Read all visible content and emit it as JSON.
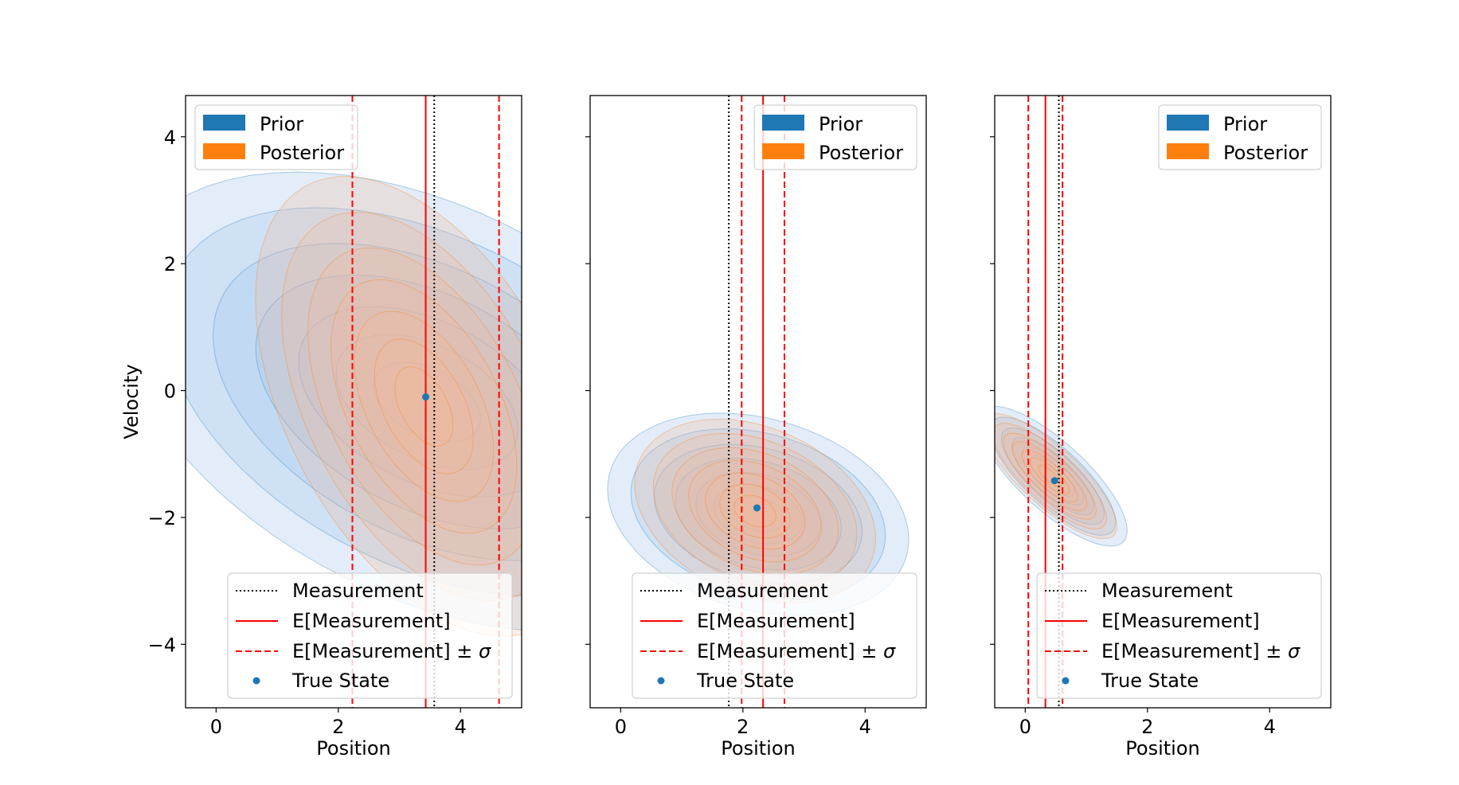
{
  "legend_text": {
    "prior": "Prior",
    "posterior": "Posterior",
    "measurement": "Measurement",
    "expected": "E[Measurement]",
    "expected_sigma_prefix": "E[Measurement] ± ",
    "sigma": "σ",
    "true_state": "True State"
  },
  "colors": {
    "prior": "#1f77b4",
    "prior_fill": "#a8c8ee",
    "posterior": "#ff7f0e",
    "posterior_fill": "#f2b99a",
    "measurement": "#000000",
    "expected": "#ff0000",
    "true_state": "#1f77b4"
  },
  "chart_data": [
    {
      "type": "contour",
      "xlabel": "Position",
      "ylabel": "Velocity",
      "xlim": [
        -0.5,
        5.0
      ],
      "ylim": [
        -5.0,
        4.65
      ],
      "xticks": [
        0,
        2,
        4
      ],
      "yticks": [
        -4,
        -2,
        0,
        2,
        4
      ],
      "grid": false,
      "legend_distributions_position": "upper-left",
      "legend_lines_position": "lower-right",
      "prior": {
        "mean": [
          3.45,
          -0.18
        ],
        "std": [
          1.75,
          1.25
        ],
        "corr": -0.42
      },
      "posterior": {
        "mean": [
          3.4,
          -0.25
        ],
        "std": [
          0.95,
          1.25
        ],
        "corr": -0.47
      },
      "measurement": 3.57,
      "expected_measurement": 3.43,
      "expected_sigma": 1.2,
      "true_state": {
        "position": 3.43,
        "velocity": -0.1
      }
    },
    {
      "type": "contour",
      "xlabel": "Position",
      "ylabel": "",
      "xlim": [
        -0.5,
        5.0
      ],
      "ylim": [
        -5.0,
        4.65
      ],
      "xticks": [
        0,
        2,
        4
      ],
      "yticks": [
        -4,
        -2,
        0,
        2,
        4
      ],
      "grid": false,
      "legend_distributions_position": "upper-right",
      "legend_lines_position": "lower-right",
      "prior": {
        "mean": [
          2.25,
          -1.95
        ],
        "std": [
          0.85,
          0.55
        ],
        "corr": -0.25
      },
      "posterior": {
        "mean": [
          2.2,
          -1.9
        ],
        "std": [
          0.68,
          0.5
        ],
        "corr": -0.3
      },
      "measurement": 1.77,
      "expected_measurement": 2.33,
      "expected_sigma": 0.35,
      "true_state": {
        "position": 2.23,
        "velocity": -1.85
      }
    },
    {
      "type": "contour",
      "xlabel": "Position",
      "ylabel": "",
      "xlim": [
        -0.5,
        5.0
      ],
      "ylim": [
        -5.0,
        4.65
      ],
      "xticks": [
        0,
        2,
        4
      ],
      "yticks": [
        -4,
        -2,
        0,
        2,
        4
      ],
      "grid": false,
      "legend_distributions_position": "upper-right",
      "legend_lines_position": "lower-right",
      "prior": {
        "mean": [
          0.45,
          -1.35
        ],
        "std": [
          0.42,
          0.38
        ],
        "corr": -0.78
      },
      "posterior": {
        "mean": [
          0.4,
          -1.35
        ],
        "std": [
          0.38,
          0.34
        ],
        "corr": -0.8
      },
      "measurement": 0.55,
      "expected_measurement": 0.33,
      "expected_sigma": 0.28,
      "true_state": {
        "position": 0.48,
        "velocity": -1.42
      }
    }
  ]
}
